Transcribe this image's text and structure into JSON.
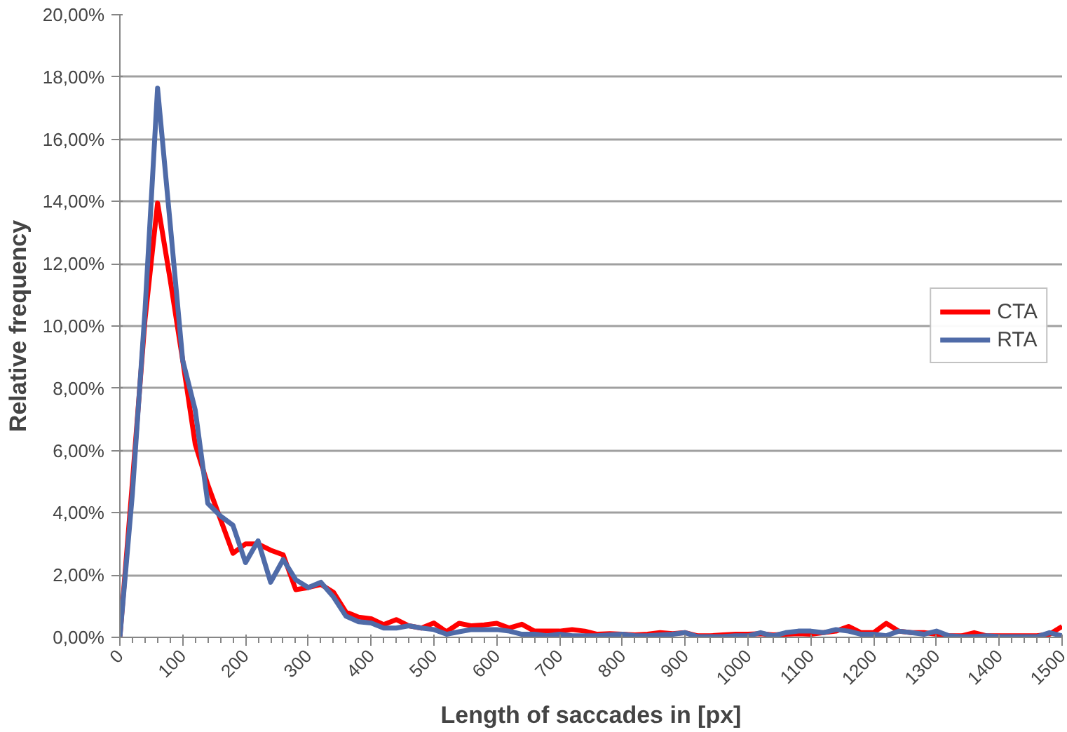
{
  "chart_data": {
    "type": "line",
    "xlabel": "Length of saccades in [px]",
    "ylabel": "Relative frequency",
    "x": [
      0,
      20,
      40,
      60,
      80,
      100,
      120,
      140,
      160,
      180,
      200,
      220,
      240,
      260,
      280,
      300,
      320,
      340,
      360,
      380,
      400,
      420,
      440,
      460,
      480,
      500,
      520,
      540,
      560,
      580,
      600,
      620,
      640,
      660,
      680,
      700,
      720,
      740,
      760,
      780,
      800,
      820,
      840,
      860,
      880,
      900,
      920,
      940,
      960,
      980,
      1000,
      1020,
      1040,
      1060,
      1080,
      1100,
      1120,
      1140,
      1160,
      1180,
      1200,
      1220,
      1240,
      1260,
      1280,
      1300,
      1320,
      1340,
      1360,
      1380,
      1400,
      1420,
      1440,
      1460,
      1480,
      1500
    ],
    "series": [
      {
        "name": "CTA",
        "color": "#ff0000",
        "values": [
          0,
          5.0,
          10.2,
          13.95,
          11.5,
          8.9,
          6.2,
          4.9,
          3.8,
          2.7,
          3.0,
          3.0,
          2.8,
          2.65,
          1.53,
          1.6,
          1.7,
          1.45,
          0.81,
          0.65,
          0.6,
          0.41,
          0.57,
          0.37,
          0.3,
          0.46,
          0.18,
          0.45,
          0.37,
          0.4,
          0.45,
          0.3,
          0.42,
          0.2,
          0.2,
          0.2,
          0.25,
          0.2,
          0.1,
          0.12,
          0.1,
          0.08,
          0.1,
          0.15,
          0.12,
          0.15,
          0.05,
          0.05,
          0.08,
          0.1,
          0.1,
          0.12,
          0.08,
          0.1,
          0.12,
          0.1,
          0.15,
          0.2,
          0.35,
          0.15,
          0.15,
          0.45,
          0.2,
          0.15,
          0.15,
          0.1,
          0.05,
          0.05,
          0.15,
          0.05,
          0.05,
          0.05,
          0.05,
          0.05,
          0.1,
          0.35
        ]
      },
      {
        "name": "RTA",
        "color": "#4f6ba8",
        "values": [
          0,
          4.63,
          10.5,
          17.64,
          13.3,
          8.9,
          7.3,
          4.3,
          3.9,
          3.6,
          2.4,
          3.1,
          1.77,
          2.5,
          1.85,
          1.6,
          1.77,
          1.3,
          0.68,
          0.5,
          0.46,
          0.3,
          0.3,
          0.37,
          0.3,
          0.25,
          0.1,
          0.18,
          0.25,
          0.25,
          0.25,
          0.2,
          0.1,
          0.1,
          0.05,
          0.1,
          0.05,
          0.05,
          0.05,
          0.08,
          0.1,
          0.05,
          0.05,
          0.08,
          0.1,
          0.15,
          0.02,
          0.02,
          0.02,
          0.05,
          0.05,
          0.15,
          0.05,
          0.15,
          0.2,
          0.2,
          0.15,
          0.25,
          0.2,
          0.1,
          0.1,
          0.05,
          0.2,
          0.15,
          0.1,
          0.2,
          0.05,
          0.02,
          0.02,
          0.05,
          0.02,
          0.02,
          0.02,
          0.02,
          0.15,
          0.05
        ]
      }
    ],
    "xlim": [
      0,
      1500
    ],
    "xticks": [
      0,
      100,
      200,
      300,
      400,
      500,
      600,
      700,
      800,
      900,
      1000,
      1100,
      1200,
      1300,
      1400,
      1500
    ],
    "ylim": [
      0,
      20
    ],
    "yticks": [
      {
        "value": 0,
        "label": "0,00%"
      },
      {
        "value": 2,
        "label": "2,00%"
      },
      {
        "value": 4,
        "label": "4,00%"
      },
      {
        "value": 6,
        "label": "6,00%"
      },
      {
        "value": 8,
        "label": "8,00%"
      },
      {
        "value": 10,
        "label": "10,00%"
      },
      {
        "value": 12,
        "label": "12,00%"
      },
      {
        "value": 14,
        "label": "14,00%"
      },
      {
        "value": 16,
        "label": "16,00%"
      },
      {
        "value": 18,
        "label": "18,00%"
      },
      {
        "value": 20,
        "label": "20,00%"
      }
    ],
    "grid": "y",
    "legend": "right",
    "line_style": "solid",
    "marker": "none"
  }
}
